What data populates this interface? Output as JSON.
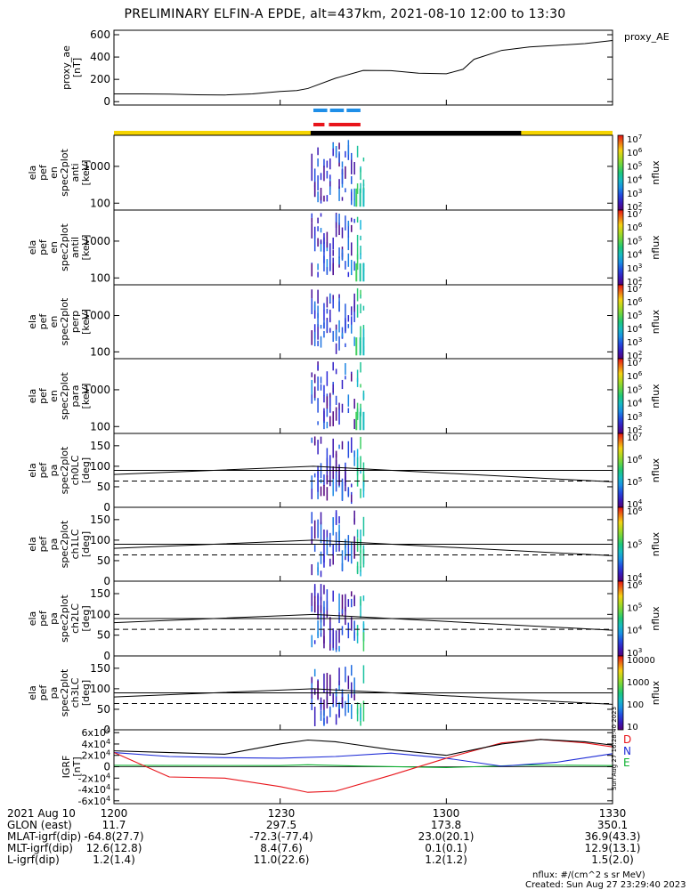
{
  "title": "PRELIMINARY ELFIN-A EPDE, alt=437km, 2021-08-10 12:00 to 13:30",
  "footer_note_1": "nflux: #/(cm^2 s sr MeV)",
  "footer_note_2": "Created: Sun Aug 27 23:29:40 2023",
  "side_stamp": "Sun Aug 27 16:28:40 2023",
  "colors": {
    "ae_line": "#000000",
    "science_bar": "#f5d400",
    "shadow_bar": "#000000",
    "blue_marks": "#1f8fe8",
    "red_marks": "#e8151b",
    "bx": "#e8151b",
    "by": "#1d2bd6",
    "bz": "#0db030"
  },
  "ephemeris": {
    "labels": [
      "2021 Aug 10",
      "GLON (east)",
      "MLAT-igrf(dip)",
      "MLT-igrf(dip)",
      "L-igrf(dip)"
    ],
    "columns": [
      [
        "1200",
        "11.7",
        "-64.8(27.7)",
        "12.6(12.8)",
        "1.2(1.4)"
      ],
      [
        "1230",
        "297.5",
        "-72.3(-77.4)",
        "8.4(7.6)",
        "11.0(22.6)"
      ],
      [
        "1300",
        "173.8",
        "23.0(20.1)",
        "0.1(0.1)",
        "1.2(1.2)"
      ],
      [
        "1330",
        "350.1",
        "36.9(43.3)",
        "12.9(13.1)",
        "1.5(2.0)"
      ]
    ]
  },
  "chart_data": {
    "type": "line",
    "x_range_minutes": [
      0,
      90
    ],
    "x_ticks": [
      "1200",
      "1230",
      "1300",
      "1330"
    ],
    "panels": [
      {
        "id": "proxy_ae",
        "type": "line",
        "ylabel_lines": [
          "proxy_ae",
          "[nT]"
        ],
        "legend": "proxy_AE",
        "ylim": [
          -30,
          640
        ],
        "yticks": [
          "0",
          "200",
          "400",
          "600"
        ],
        "x": [
          0,
          5,
          10,
          15,
          20,
          25,
          30,
          33,
          35,
          40,
          45,
          50,
          55,
          60,
          63,
          65,
          70,
          75,
          80,
          85,
          90
        ],
        "values": [
          70,
          70,
          68,
          62,
          60,
          70,
          92,
          100,
          118,
          210,
          280,
          278,
          255,
          250,
          290,
          380,
          460,
          490,
          505,
          520,
          548
        ]
      },
      {
        "id": "spec_anti",
        "type": "heatmap",
        "ylabel_lines": [
          "ela",
          "pef",
          "en",
          "spec2plot",
          "anti",
          "[keV]"
        ],
        "yscale": "log",
        "ylim": [
          65,
          7000
        ],
        "yticks": [
          "100",
          "1000"
        ],
        "colorbar_ticks": [
          "10^2",
          "10^3",
          "10^4",
          "10^5",
          "10^6",
          "10^7"
        ],
        "colorbar_label": "nflux"
      },
      {
        "id": "spec_antil",
        "type": "heatmap",
        "ylabel_lines": [
          "ela",
          "pef",
          "en",
          "spec2plot",
          "antil",
          "[keV]"
        ],
        "yscale": "log",
        "ylim": [
          65,
          7000
        ],
        "yticks": [
          "100",
          "1000"
        ],
        "colorbar_ticks": [
          "10^2",
          "10^3",
          "10^4",
          "10^5",
          "10^6",
          "10^7"
        ],
        "colorbar_label": "nflux"
      },
      {
        "id": "spec_perp",
        "type": "heatmap",
        "ylabel_lines": [
          "ela",
          "pef",
          "en",
          "spec2plot",
          "perp",
          "[keV]"
        ],
        "yscale": "log",
        "ylim": [
          65,
          7000
        ],
        "yticks": [
          "100",
          "1000"
        ],
        "colorbar_ticks": [
          "10^2",
          "10^3",
          "10^4",
          "10^5",
          "10^6",
          "10^7"
        ],
        "colorbar_label": "nflux"
      },
      {
        "id": "spec_para",
        "type": "heatmap",
        "ylabel_lines": [
          "ela",
          "pef",
          "en",
          "spec2plot",
          "para",
          "[keV]"
        ],
        "yscale": "log",
        "ylim": [
          65,
          7000
        ],
        "yticks": [
          "100",
          "1000"
        ],
        "colorbar_ticks": [
          "10^2",
          "10^3",
          "10^4",
          "10^5",
          "10^6",
          "10^7"
        ],
        "colorbar_label": "nflux"
      },
      {
        "id": "pa_ch0",
        "type": "heatmap",
        "ylabel_lines": [
          "ela",
          "pef",
          "pa",
          "spec2plot",
          "ch0LC",
          "[deg]"
        ],
        "ylim": [
          0,
          180
        ],
        "yticks": [
          "0",
          "50",
          "100",
          "150"
        ],
        "colorbar_ticks": [
          "10^4",
          "10^5",
          "10^6",
          "10^7"
        ],
        "colorbar_label": "nflux"
      },
      {
        "id": "pa_ch1",
        "type": "heatmap",
        "ylabel_lines": [
          "ela",
          "pef",
          "pa",
          "spec2plot",
          "ch1LC",
          "[deg]"
        ],
        "ylim": [
          0,
          180
        ],
        "yticks": [
          "0",
          "50",
          "100",
          "150"
        ],
        "colorbar_ticks": [
          "10^4",
          "10^5",
          "10^6"
        ],
        "colorbar_label": "nflux"
      },
      {
        "id": "pa_ch2",
        "type": "heatmap",
        "ylabel_lines": [
          "ela",
          "pef",
          "pa",
          "spec2plot",
          "ch2LC",
          "[deg]"
        ],
        "ylim": [
          0,
          180
        ],
        "yticks": [
          "0",
          "50",
          "100",
          "150"
        ],
        "colorbar_ticks": [
          "10^3",
          "10^4",
          "10^5",
          "10^6"
        ],
        "colorbar_label": "nflux"
      },
      {
        "id": "pa_ch3",
        "type": "heatmap",
        "ylabel_lines": [
          "ela",
          "pef",
          "pa",
          "spec2plot",
          "ch3LC",
          "[deg]"
        ],
        "ylim": [
          0,
          180
        ],
        "yticks": [
          "0",
          "50",
          "100",
          "150"
        ],
        "colorbar_ticks": [
          "10",
          "100",
          "1000",
          "10000"
        ],
        "colorbar_label": "nflux"
      },
      {
        "id": "igrf",
        "type": "line",
        "ylabel_lines": [
          "IGRF",
          "[nT]"
        ],
        "ylim": [
          -65000,
          65000
        ],
        "yticks": [
          "-6x10^4",
          "-4x10^4",
          "-2x10^4",
          "0",
          "2x10^4",
          "4x10^4",
          "6x10^4"
        ],
        "series": [
          {
            "name": "E",
            "color": "#0db030",
            "x": [
              0,
              30,
              35,
              45,
              60,
              75,
              90
            ],
            "values": [
              2500,
              2000,
              3500,
              1000,
              -1500,
              3000,
              2000
            ]
          },
          {
            "name": "N",
            "color": "#1d2bd6",
            "x": [
              0,
              10,
              20,
              30,
              40,
              50,
              60,
              70,
              80,
              90
            ],
            "values": [
              25000,
              18000,
              16000,
              15000,
              18000,
              24000,
              15000,
              1000,
              8000,
              23000
            ]
          },
          {
            "name": "D",
            "color": "#e8151b",
            "x": [
              0,
              10,
              20,
              30,
              35,
              40,
              50,
              60,
              70,
              77,
              85,
              90
            ],
            "values": [
              25000,
              -18000,
              -20000,
              -35000,
              -45000,
              -43000,
              -15000,
              15000,
              42000,
              48000,
              42000,
              35000
            ]
          },
          {
            "name": "",
            "color": "#000000",
            "x": [
              0,
              10,
              20,
              30,
              35,
              40,
              50,
              60,
              70,
              77,
              85,
              90
            ],
            "values": [
              28000,
              25000,
              22000,
              40000,
              47000,
              44000,
              30000,
              20000,
              40000,
              48000,
              44000,
              38000
            ]
          }
        ]
      }
    ],
    "pitch_angle_overlays": {
      "solid_x": [
        0,
        36,
        90
      ],
      "solid_values": [
        80,
        100,
        62
      ],
      "horizontal_line": 90,
      "dashed_x": [
        0,
        90
      ],
      "dashed_values": [
        64,
        64
      ]
    }
  }
}
